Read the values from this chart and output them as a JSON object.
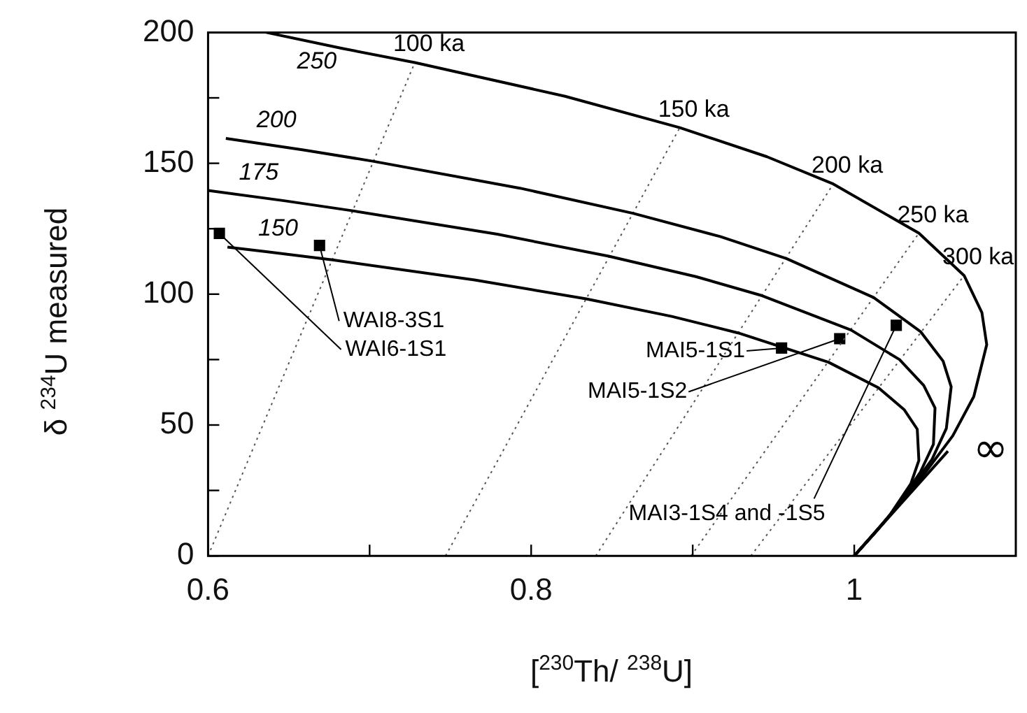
{
  "chart_data": {
    "type": "line",
    "xlabel": "[$^{230}$Th/ $^{238}$U]",
    "ylabel": "δ $^{234}$U measured",
    "xlim": [
      0.6,
      1.1
    ],
    "ylim": [
      0,
      200
    ],
    "xticks": [
      0.6,
      {
        "value": 0.7,
        "label": null
      },
      0.8,
      {
        "value": 0.9,
        "label": null
      },
      1
    ],
    "yticks": [
      0,
      {
        "value": 25,
        "label": null
      },
      50,
      {
        "value": 75,
        "label": null
      },
      100,
      {
        "value": 125,
        "label": null
      },
      150,
      {
        "value": 175,
        "label": null
      },
      200
    ],
    "line_style": "solid",
    "series": [
      {
        "name": "250",
        "color": "#000000",
        "x": [
          0.636,
          0.683,
          0.728,
          0.821,
          0.892,
          0.946,
          0.987,
          1.04,
          1.068,
          1.079,
          1.082,
          1.074,
          1.061,
          1.037,
          1.021,
          1.0
        ],
        "values": [
          200,
          193.9,
          188.5,
          175.6,
          163.6,
          152.5,
          142.1,
          123.3,
          107.1,
          93.0,
          80.7,
          60.9,
          45.9,
          26.1,
          14.8,
          0
        ]
      },
      {
        "name": "200",
        "color": "#000000",
        "x": [
          0.611,
          0.659,
          0.702,
          0.793,
          0.863,
          0.917,
          0.958,
          1.012,
          1.041,
          1.055,
          1.06,
          1.057,
          1.048,
          1.029,
          1.017,
          1.0
        ],
        "values": [
          159.5,
          155.1,
          150.8,
          140.5,
          130.9,
          122.0,
          113.6,
          98.7,
          85.7,
          74.4,
          64.6,
          48.7,
          36.7,
          20.9,
          11.8,
          0
        ]
      },
      {
        "name": "175",
        "color": "#000000",
        "x": [
          0.6,
          0.647,
          0.689,
          0.779,
          0.848,
          0.902,
          0.943,
          0.998,
          1.028,
          1.043,
          1.05,
          1.049,
          1.041,
          1.026,
          1.015,
          1.0
        ],
        "values": [
          139.6,
          135.7,
          131.9,
          122.9,
          114.5,
          106.7,
          99.4,
          86.3,
          75.0,
          65.1,
          56.5,
          42.6,
          32.1,
          18.3,
          10.4,
          0
        ]
      },
      {
        "name": "150",
        "color": "#000000",
        "x": [
          0.612,
          0.635,
          0.677,
          0.765,
          0.834,
          0.887,
          0.928,
          0.984,
          1.015,
          1.031,
          1.039,
          1.04,
          1.035,
          1.022,
          1.013,
          1.0
        ],
        "values": [
          118.0,
          116.3,
          113.1,
          105.4,
          98.2,
          91.5,
          85.2,
          74.0,
          64.2,
          55.8,
          48.4,
          36.5,
          27.5,
          15.6,
          8.9,
          0
        ]
      },
      {
        "name": "∞",
        "color": "#000000",
        "x": [
          1.0,
          1.058
        ],
        "values": [
          0,
          40
        ]
      },
      {
        "name": "100 ka",
        "color": "#555555",
        "line_style": "dotted",
        "x": [
          0.6,
          0.728
        ],
        "values": [
          0,
          188.5
        ]
      },
      {
        "name": "150 ka",
        "color": "#555555",
        "line_style": "dotted",
        "x": [
          0.747,
          0.892
        ],
        "values": [
          0,
          163.6
        ]
      },
      {
        "name": "200 ka",
        "color": "#555555",
        "line_style": "dotted",
        "x": [
          0.84,
          0.987
        ],
        "values": [
          0,
          142.1
        ]
      },
      {
        "name": "250 ka",
        "color": "#555555",
        "line_style": "dotted",
        "x": [
          0.899,
          1.04
        ],
        "values": [
          0,
          123.3
        ]
      },
      {
        "name": "300 ka",
        "color": "#555555",
        "line_style": "dotted",
        "x": [
          0.936,
          1.068
        ],
        "values": [
          0,
          107.1
        ]
      },
      {
        "type": "scatter",
        "marker": "square",
        "color": "#000000",
        "x": [
          0.669,
          0.607,
          0.955,
          0.991,
          1.026
        ],
        "values": [
          118.6,
          123.2,
          79.4,
          83.0,
          88.1
        ]
      }
    ],
    "annotations": [
      {
        "text": "WAI8-3S1",
        "x": 0.669,
        "y": 118.6
      },
      {
        "text": "WAI6-1S1",
        "x": 0.607,
        "y": 123.2
      },
      {
        "text": "MAI5-1S1",
        "x": 0.955,
        "y": 79.4
      },
      {
        "text": "MAI5-1S2",
        "x": 0.991,
        "y": 83.0
      },
      {
        "text": "MAI3-1S4 and -1S5",
        "x": 1.026,
        "y": 88.1
      }
    ]
  }
}
